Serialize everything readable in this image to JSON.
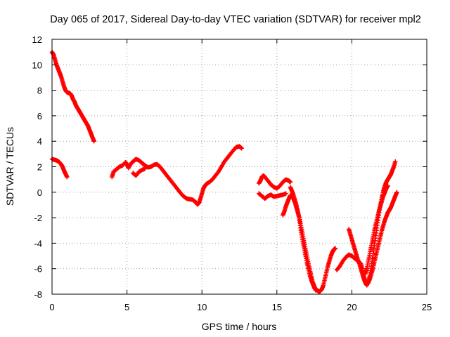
{
  "chart_data": {
    "type": "scatter",
    "title": "Day 065 of 2017, Sidereal Day-to-day VTEC variation (SDTVAR) for receiver mpl2",
    "xlabel": "GPS time / hours",
    "ylabel": "SDTVAR / TECUs",
    "xlim": [
      0,
      25
    ],
    "ylim": [
      -8,
      12
    ],
    "xticks": [
      "0",
      "5",
      "10",
      "15",
      "20",
      "25"
    ],
    "yticks": [
      "-8",
      "-6",
      "-4",
      "-2",
      "0",
      "2",
      "4",
      "6",
      "8",
      "10",
      "12"
    ],
    "grid": true,
    "marker": "plus",
    "color": "#ff0000",
    "segments": [
      [
        [
          0.0,
          11.0
        ],
        [
          0.1,
          10.8
        ],
        [
          0.2,
          10.4
        ],
        [
          0.3,
          10.0
        ],
        [
          0.4,
          9.7
        ],
        [
          0.5,
          9.4
        ],
        [
          0.6,
          9.1
        ],
        [
          0.7,
          8.7
        ],
        [
          0.8,
          8.3
        ],
        [
          0.9,
          8.0
        ],
        [
          1.0,
          7.85
        ],
        [
          1.1,
          7.8
        ],
        [
          1.2,
          7.75
        ],
        [
          1.3,
          7.6
        ],
        [
          1.4,
          7.3
        ],
        [
          1.5,
          7.1
        ],
        [
          1.6,
          6.8
        ],
        [
          1.7,
          6.6
        ],
        [
          1.8,
          6.4
        ],
        [
          1.9,
          6.2
        ],
        [
          2.0,
          6.0
        ],
        [
          2.1,
          5.8
        ],
        [
          2.2,
          5.6
        ],
        [
          2.3,
          5.4
        ],
        [
          2.4,
          5.2
        ],
        [
          2.5,
          4.9
        ],
        [
          2.6,
          4.6
        ],
        [
          2.7,
          4.3
        ],
        [
          2.8,
          4.0
        ]
      ],
      [
        [
          0.0,
          2.6
        ],
        [
          0.15,
          2.55
        ],
        [
          0.3,
          2.5
        ],
        [
          0.45,
          2.4
        ],
        [
          0.6,
          2.2
        ],
        [
          0.7,
          2.0
        ],
        [
          0.8,
          1.7
        ],
        [
          0.9,
          1.45
        ],
        [
          1.0,
          1.2
        ]
      ],
      [
        [
          4.0,
          1.2
        ],
        [
          4.1,
          1.6
        ],
        [
          4.3,
          1.8
        ],
        [
          4.5,
          2.0
        ],
        [
          4.7,
          2.1
        ],
        [
          4.9,
          2.35
        ],
        [
          5.0,
          2.2
        ],
        [
          5.1,
          1.9
        ],
        [
          5.3,
          2.3
        ],
        [
          5.5,
          2.5
        ],
        [
          5.6,
          2.6
        ],
        [
          5.8,
          2.5
        ],
        [
          6.0,
          2.3
        ],
        [
          6.2,
          2.1
        ],
        [
          6.4,
          1.95
        ],
        [
          6.6,
          2.0
        ],
        [
          6.8,
          2.15
        ],
        [
          7.0,
          2.2
        ],
        [
          7.2,
          2.0
        ],
        [
          7.4,
          1.7
        ],
        [
          7.6,
          1.4
        ],
        [
          7.8,
          1.1
        ],
        [
          8.0,
          0.8
        ],
        [
          8.2,
          0.5
        ],
        [
          8.4,
          0.2
        ],
        [
          8.6,
          -0.1
        ],
        [
          8.8,
          -0.35
        ],
        [
          9.0,
          -0.5
        ],
        [
          9.2,
          -0.55
        ],
        [
          9.4,
          -0.6
        ],
        [
          9.6,
          -0.8
        ],
        [
          9.7,
          -0.95
        ],
        [
          9.8,
          -0.85
        ],
        [
          9.9,
          -0.5
        ],
        [
          10.0,
          -0.1
        ],
        [
          10.1,
          0.3
        ],
        [
          10.2,
          0.5
        ],
        [
          10.3,
          0.65
        ],
        [
          10.5,
          0.8
        ],
        [
          10.7,
          1.0
        ],
        [
          10.9,
          1.3
        ],
        [
          11.1,
          1.6
        ],
        [
          11.3,
          2.0
        ],
        [
          11.5,
          2.4
        ],
        [
          11.7,
          2.7
        ],
        [
          11.9,
          3.0
        ],
        [
          12.1,
          3.3
        ],
        [
          12.3,
          3.55
        ],
        [
          12.5,
          3.6
        ],
        [
          12.65,
          3.45
        ]
      ],
      [
        [
          5.4,
          1.5
        ],
        [
          5.6,
          1.3
        ],
        [
          5.8,
          1.6
        ],
        [
          6.0,
          1.75
        ],
        [
          6.2,
          1.85
        ]
      ],
      [
        [
          13.8,
          0.7
        ],
        [
          13.9,
          0.9
        ],
        [
          14.0,
          1.2
        ],
        [
          14.1,
          1.3
        ],
        [
          14.2,
          1.2
        ],
        [
          14.4,
          0.9
        ],
        [
          14.6,
          0.6
        ],
        [
          14.8,
          0.4
        ],
        [
          15.0,
          0.3
        ],
        [
          15.2,
          0.5
        ],
        [
          15.4,
          0.8
        ],
        [
          15.6,
          1.0
        ],
        [
          15.8,
          0.9
        ],
        [
          15.9,
          0.8
        ]
      ],
      [
        [
          13.8,
          -0.1
        ],
        [
          14.0,
          -0.3
        ],
        [
          14.2,
          -0.5
        ],
        [
          14.4,
          -0.3
        ],
        [
          14.6,
          -0.2
        ],
        [
          14.8,
          -0.35
        ],
        [
          15.0,
          -0.3
        ],
        [
          15.2,
          -0.25
        ],
        [
          15.4,
          -0.2
        ],
        [
          15.6,
          -0.1
        ]
      ],
      [
        [
          15.4,
          -1.8
        ],
        [
          15.5,
          -1.5
        ],
        [
          15.6,
          -1.1
        ],
        [
          15.7,
          -0.8
        ],
        [
          15.8,
          -0.5
        ],
        [
          15.9,
          -0.25
        ],
        [
          16.0,
          -0.3
        ],
        [
          16.1,
          -0.5
        ],
        [
          16.2,
          -0.8
        ],
        [
          16.3,
          -1.2
        ],
        [
          16.4,
          -1.6
        ],
        [
          16.5,
          -2.0
        ],
        [
          16.6,
          -2.6
        ],
        [
          16.7,
          -3.2
        ],
        [
          16.8,
          -3.8
        ],
        [
          16.9,
          -4.4
        ],
        [
          17.0,
          -5.0
        ],
        [
          17.1,
          -5.6
        ],
        [
          17.2,
          -6.1
        ],
        [
          17.3,
          -6.6
        ],
        [
          17.4,
          -7.1
        ],
        [
          17.5,
          -7.4
        ],
        [
          17.6,
          -7.65
        ],
        [
          17.7,
          -7.7
        ],
        [
          17.8,
          -7.8
        ],
        [
          17.9,
          -7.75
        ],
        [
          18.0,
          -7.6
        ],
        [
          18.1,
          -7.3
        ],
        [
          18.2,
          -6.8
        ],
        [
          18.3,
          -6.3
        ],
        [
          18.4,
          -5.8
        ],
        [
          18.5,
          -5.4
        ],
        [
          18.6,
          -5.0
        ],
        [
          18.7,
          -4.7
        ],
        [
          18.8,
          -4.5
        ],
        [
          18.9,
          -4.4
        ]
      ],
      [
        [
          15.9,
          0.4
        ],
        [
          16.0,
          0.1
        ],
        [
          16.1,
          -0.2
        ],
        [
          16.2,
          -0.6
        ],
        [
          16.3,
          -1.0
        ],
        [
          16.4,
          -1.5
        ],
        [
          16.5,
          -2.2
        ],
        [
          16.6,
          -3.0
        ],
        [
          16.7,
          -3.7
        ],
        [
          16.8,
          -4.3
        ],
        [
          16.9,
          -4.9
        ],
        [
          17.0,
          -5.5
        ],
        [
          17.1,
          -6.0
        ],
        [
          17.2,
          -6.5
        ],
        [
          17.3,
          -6.9
        ],
        [
          17.4,
          -7.2
        ],
        [
          17.5,
          -7.5
        ],
        [
          17.6,
          -7.7
        ]
      ],
      [
        [
          19.0,
          -6.1
        ],
        [
          19.2,
          -5.8
        ],
        [
          19.4,
          -5.4
        ],
        [
          19.6,
          -5.1
        ],
        [
          19.8,
          -4.9
        ],
        [
          20.0,
          -5.0
        ],
        [
          20.2,
          -5.2
        ],
        [
          20.4,
          -5.4
        ],
        [
          20.6,
          -5.6
        ],
        [
          20.7,
          -6.0
        ],
        [
          20.8,
          -6.6
        ],
        [
          20.9,
          -7.0
        ],
        [
          21.0,
          -7.2
        ],
        [
          21.1,
          -7.1
        ],
        [
          21.2,
          -6.8
        ],
        [
          21.3,
          -6.4
        ],
        [
          21.4,
          -6.0
        ],
        [
          21.5,
          -5.5
        ],
        [
          21.6,
          -5.0
        ],
        [
          21.7,
          -4.5
        ],
        [
          21.8,
          -4.0
        ],
        [
          21.9,
          -3.5
        ],
        [
          22.0,
          -3.0
        ],
        [
          22.1,
          -2.6
        ],
        [
          22.2,
          -2.2
        ],
        [
          22.3,
          -1.9
        ],
        [
          22.4,
          -1.6
        ],
        [
          22.5,
          -1.4
        ],
        [
          22.6,
          -1.2
        ],
        [
          22.7,
          -0.9
        ],
        [
          22.8,
          -0.6
        ],
        [
          22.9,
          -0.3
        ],
        [
          23.0,
          0.0
        ]
      ],
      [
        [
          19.8,
          -2.9
        ],
        [
          19.9,
          -3.3
        ],
        [
          20.0,
          -3.7
        ],
        [
          20.1,
          -4.1
        ],
        [
          20.2,
          -4.5
        ],
        [
          20.3,
          -4.9
        ],
        [
          20.4,
          -5.3
        ],
        [
          20.5,
          -5.6
        ],
        [
          20.6,
          -6.0
        ],
        [
          20.7,
          -6.4
        ],
        [
          20.8,
          -6.8
        ],
        [
          20.9,
          -7.1
        ],
        [
          21.0,
          -7.3
        ],
        [
          21.1,
          -7.0
        ],
        [
          21.2,
          -6.5
        ],
        [
          21.3,
          -5.8
        ],
        [
          21.4,
          -5.0
        ],
        [
          21.5,
          -4.2
        ],
        [
          21.6,
          -3.4
        ],
        [
          21.7,
          -2.6
        ],
        [
          21.8,
          -1.8
        ],
        [
          21.9,
          -1.0
        ],
        [
          22.0,
          -0.4
        ],
        [
          22.1,
          0.1
        ],
        [
          22.2,
          0.5
        ],
        [
          22.3,
          0.8
        ],
        [
          22.4,
          1.0
        ],
        [
          22.5,
          1.2
        ],
        [
          22.6,
          1.4
        ],
        [
          22.7,
          1.7
        ],
        [
          22.8,
          2.0
        ],
        [
          22.9,
          2.4
        ]
      ],
      [
        [
          20.9,
          -6.4
        ],
        [
          21.0,
          -6.0
        ],
        [
          21.1,
          -5.4
        ],
        [
          21.2,
          -4.8
        ],
        [
          21.3,
          -4.2
        ],
        [
          21.4,
          -3.6
        ],
        [
          21.5,
          -3.0
        ],
        [
          21.6,
          -2.5
        ],
        [
          21.7,
          -2.0
        ],
        [
          21.8,
          -1.5
        ],
        [
          21.9,
          -1.1
        ],
        [
          22.0,
          -0.7
        ],
        [
          22.1,
          -0.3
        ],
        [
          22.2,
          0.0
        ],
        [
          22.3,
          0.3
        ],
        [
          22.4,
          0.5
        ]
      ]
    ]
  }
}
